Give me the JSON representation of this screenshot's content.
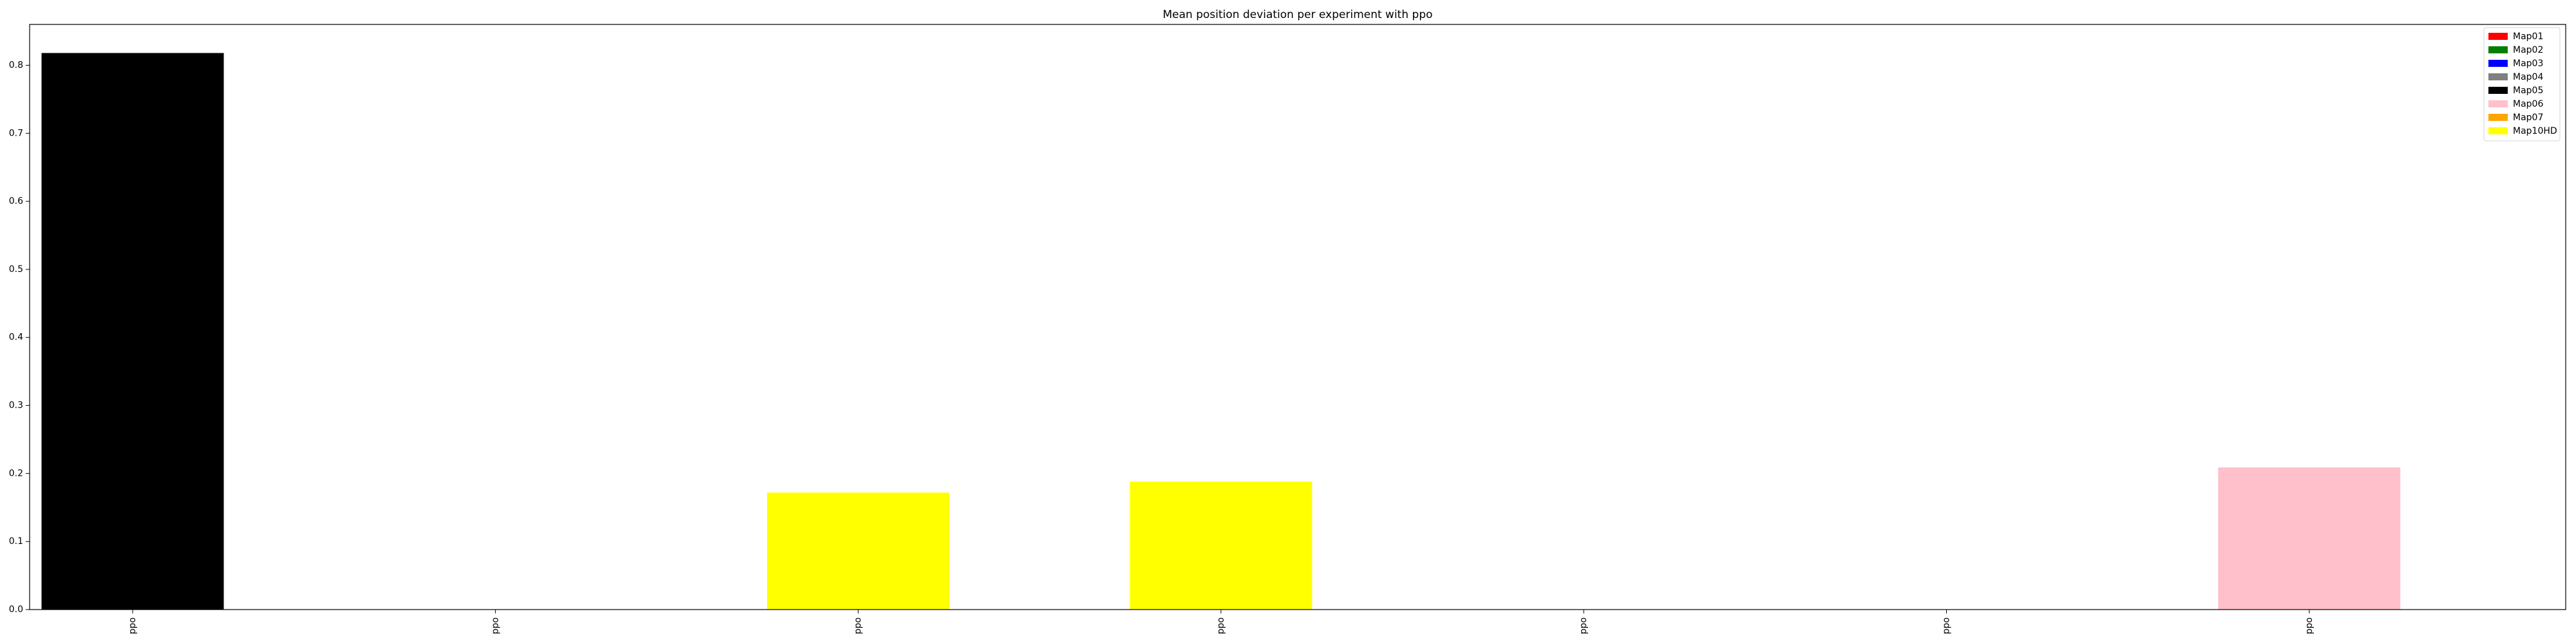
{
  "chart_data": {
    "type": "bar",
    "title": "Mean position deviation per experiment with ppo",
    "xlabel": "",
    "ylabel": "",
    "categories": [
      "ppo",
      "ppo",
      "ppo",
      "ppo",
      "ppo",
      "ppo",
      "ppo"
    ],
    "values": [
      0.818,
      0.0,
      0.172,
      0.188,
      0.0,
      0.0,
      0.209
    ],
    "bar_colors": [
      "#000000",
      "#ff0000",
      "#ffff00",
      "#ffff00",
      "#ff0000",
      "#ff0000",
      "#ffc0cb"
    ],
    "ylim": [
      0.0,
      0.86
    ],
    "yticks": [
      0.0,
      0.1,
      0.2,
      0.3,
      0.4,
      0.5,
      0.6,
      0.7,
      0.8
    ],
    "ytick_labels": [
      "0.0",
      "0.1",
      "0.2",
      "0.3",
      "0.4",
      "0.5",
      "0.6",
      "0.7",
      "0.8"
    ],
    "grid": false,
    "legend_position": "top-right",
    "legend": [
      {
        "name": "Map01",
        "color": "#ff0000"
      },
      {
        "name": "Map02",
        "color": "#008000"
      },
      {
        "name": "Map03",
        "color": "#0000ff"
      },
      {
        "name": "Map04",
        "color": "#808080"
      },
      {
        "name": "Map05",
        "color": "#000000"
      },
      {
        "name": "Map06",
        "color": "#ffc0cb"
      },
      {
        "name": "Map07",
        "color": "#ffa500"
      },
      {
        "name": "Map10HD",
        "color": "#ffff00"
      }
    ]
  }
}
